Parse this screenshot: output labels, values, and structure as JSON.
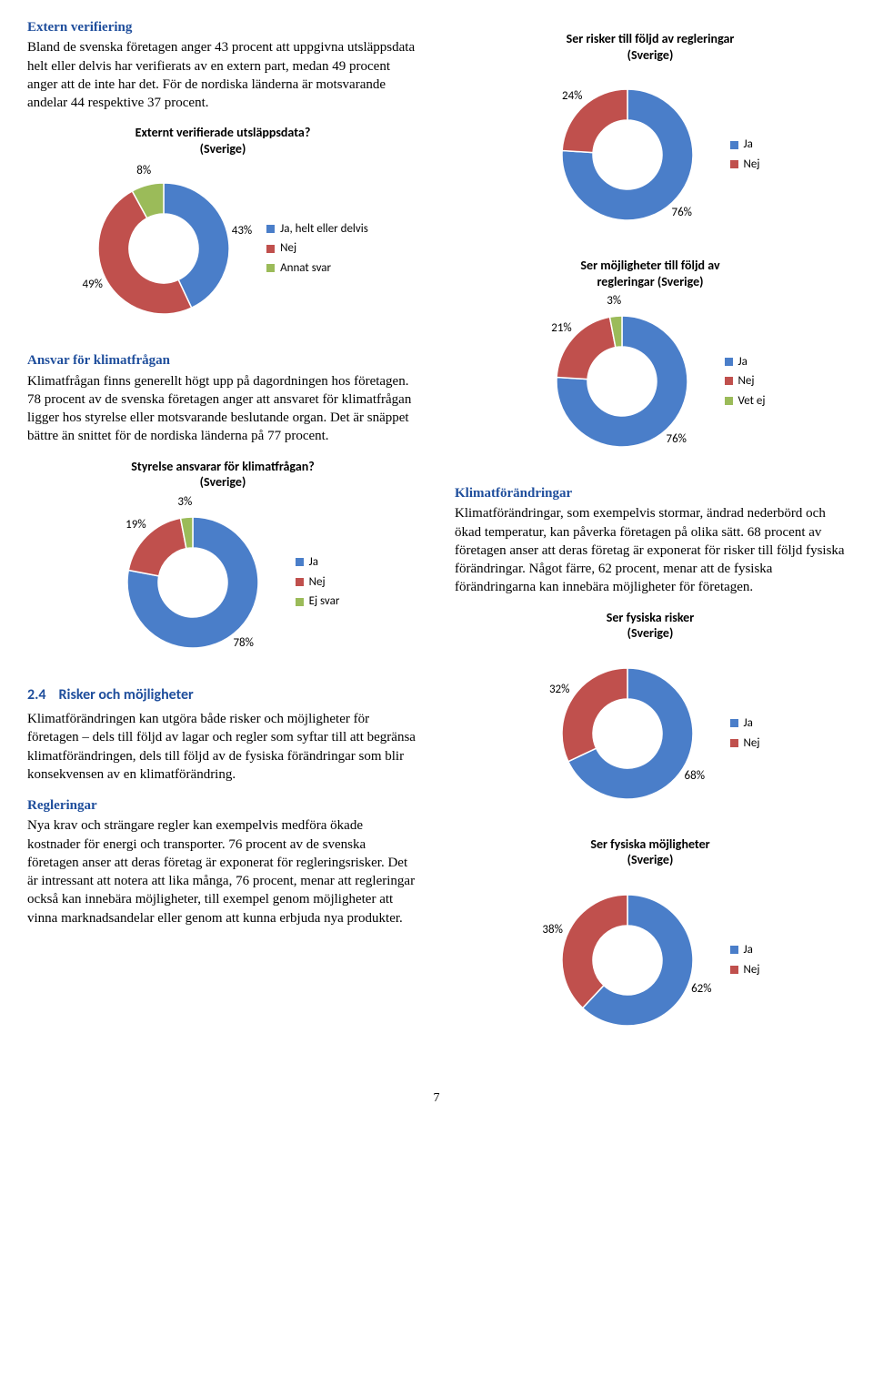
{
  "colors": {
    "blue": "#4a7ec9",
    "red": "#c0504d",
    "green": "#9bbb59"
  },
  "left": {
    "sec1_heading": "Extern verifiering",
    "sec1_body": "Bland de svenska företagen anger 43 procent att uppgivna utsläppsdata helt eller delvis har verifierats av en extern part, medan 49 procent anger att de inte har det. För de nordiska länderna är motsvarande andelar 44 respektive 37 procent.",
    "chart1": {
      "title1": "Externt verifierade utsläppsdata?",
      "title2": "(Sverige)",
      "slices": [
        {
          "label": "43%",
          "value": 43,
          "color": "#4a7ec9"
        },
        {
          "label": "49%",
          "value": 49,
          "color": "#c0504d"
        },
        {
          "label": "8%",
          "value": 8,
          "color": "#9bbb59"
        }
      ],
      "legend": [
        {
          "label": "Ja, helt eller delvis",
          "color": "#4a7ec9"
        },
        {
          "label": "Nej",
          "color": "#c0504d"
        },
        {
          "label": "Annat svar",
          "color": "#9bbb59"
        }
      ]
    },
    "sec2_heading": "Ansvar för klimatfrågan",
    "sec2_body": "Klimatfrågan finns generellt högt upp på dagordningen hos företagen. 78 procent av de svenska företagen anger att ansvaret för klimatfrågan ligger hos styrelse eller motsvarande beslutande organ. Det är snäppet bättre än snittet för de nordiska länderna på 77 procent.",
    "chart2": {
      "title1": "Styrelse ansvarar för klimatfrågan?",
      "title2": "(Sverige)",
      "slices": [
        {
          "label": "78%",
          "value": 78,
          "color": "#4a7ec9"
        },
        {
          "label": "19%",
          "value": 19,
          "color": "#c0504d"
        },
        {
          "label": "3%",
          "value": 3,
          "color": "#9bbb59"
        }
      ],
      "legend": [
        {
          "label": "Ja",
          "color": "#4a7ec9"
        },
        {
          "label": "Nej",
          "color": "#c0504d"
        },
        {
          "label": "Ej svar",
          "color": "#9bbb59"
        }
      ]
    },
    "sec3_num": "2.4",
    "sec3_title": "Risker och möjligheter",
    "sec3_body": "Klimatförändringen kan utgöra både risker och möjligheter för företagen – dels till följd av lagar och regler som syftar till att begränsa klimatförändringen, dels till följd av de fysiska förändringar som blir konsekvensen av en klimatförändring.",
    "sec4_heading": "Regleringar",
    "sec4_body": "Nya krav och strängare regler kan exempelvis medföra ökade kostnader för energi och transporter. 76 procent av de svenska företagen anser att deras företag är exponerat för regleringsrisker. Det är intressant att notera att lika många, 76 procent, menar att regleringar också kan innebära möjligheter, till exempel genom möjligheter att vinna marknadsandelar eller genom att kunna erbjuda nya produkter."
  },
  "right": {
    "chart3": {
      "title1": "Ser risker till följd av regleringar",
      "title2": "(Sverige)",
      "slices": [
        {
          "label": "76%",
          "value": 76,
          "color": "#4a7ec9"
        },
        {
          "label": "24%",
          "value": 24,
          "color": "#c0504d"
        }
      ],
      "legend": [
        {
          "label": "Ja",
          "color": "#4a7ec9"
        },
        {
          "label": "Nej",
          "color": "#c0504d"
        }
      ]
    },
    "chart4": {
      "title1": "Ser möjligheter till följd av",
      "title2": "regleringar (Sverige)",
      "slices": [
        {
          "label": "76%",
          "value": 76,
          "color": "#4a7ec9"
        },
        {
          "label": "21%",
          "value": 21,
          "color": "#c0504d"
        },
        {
          "label": "3%",
          "value": 3,
          "color": "#9bbb59"
        }
      ],
      "legend": [
        {
          "label": "Ja",
          "color": "#4a7ec9"
        },
        {
          "label": "Nej",
          "color": "#c0504d"
        },
        {
          "label": "Vet ej",
          "color": "#9bbb59"
        }
      ]
    },
    "sec5_heading": "Klimatförändringar",
    "sec5_body": "Klimatförändringar, som exempelvis stormar, ändrad nederbörd och ökad temperatur, kan påverka företagen på olika sätt. 68 procent av företagen anser att deras företag är exponerat för risker till följd fysiska förändringar. Något färre, 62 procent, menar att de fysiska förändringarna kan innebära möjligheter för företagen.",
    "chart5": {
      "title1": "Ser fysiska risker",
      "title2": "(Sverige)",
      "slices": [
        {
          "label": "68%",
          "value": 68,
          "color": "#4a7ec9"
        },
        {
          "label": "32%",
          "value": 32,
          "color": "#c0504d"
        }
      ],
      "legend": [
        {
          "label": "Ja",
          "color": "#4a7ec9"
        },
        {
          "label": "Nej",
          "color": "#c0504d"
        }
      ]
    },
    "chart6": {
      "title1": "Ser fysiska möjligheter",
      "title2": "(Sverige)",
      "slices": [
        {
          "label": "62%",
          "value": 62,
          "color": "#4a7ec9"
        },
        {
          "label": "38%",
          "value": 38,
          "color": "#c0504d"
        }
      ],
      "legend": [
        {
          "label": "Ja",
          "color": "#4a7ec9"
        },
        {
          "label": "Nej",
          "color": "#c0504d"
        }
      ]
    }
  },
  "page_number": "7"
}
